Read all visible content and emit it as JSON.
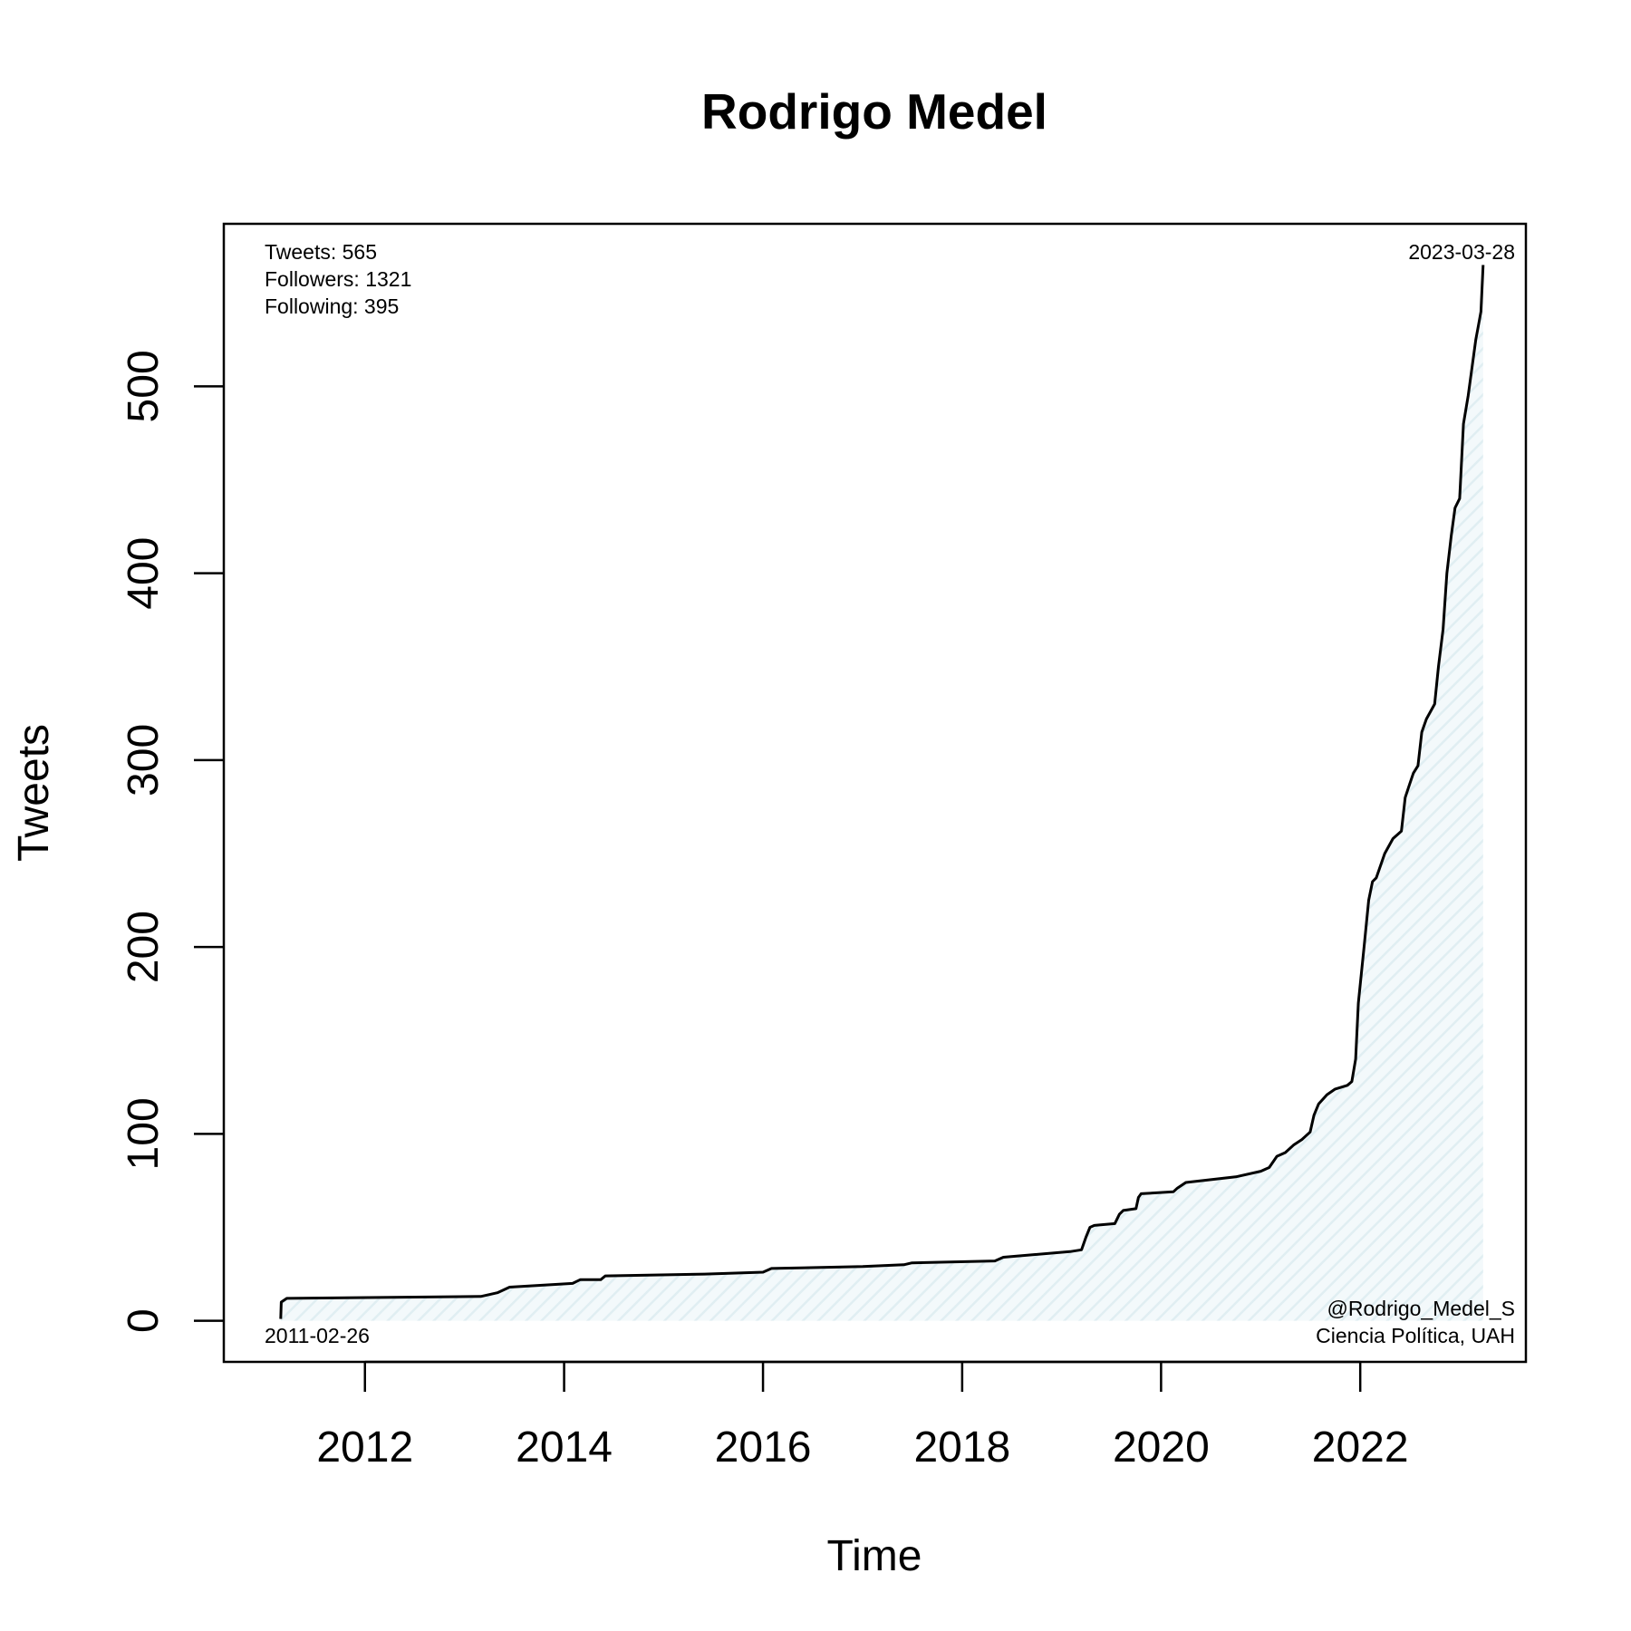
{
  "chart_data": {
    "type": "area",
    "title": "Rodrigo Medel",
    "xlabel": "Time",
    "ylabel": "Tweets",
    "xlim": [
      "2010-08-01",
      "2023-09-01"
    ],
    "ylim": [
      -22,
      587
    ],
    "x_ticks": [
      {
        "value": "2012-01-01",
        "label": "2012"
      },
      {
        "value": "2014-01-01",
        "label": "2014"
      },
      {
        "value": "2016-01-01",
        "label": "2016"
      },
      {
        "value": "2018-01-01",
        "label": "2018"
      },
      {
        "value": "2020-01-01",
        "label": "2020"
      },
      {
        "value": "2022-01-01",
        "label": "2022"
      }
    ],
    "y_ticks": [
      0,
      100,
      200,
      300,
      400,
      500
    ],
    "grid": false,
    "fill_color": "#e6f2f5",
    "line_color": "#000000",
    "stats": [
      "Tweets: 565",
      "Followers: 1321",
      "Following: 395"
    ],
    "start_label": "2011-02-26",
    "end_label": "2023-03-28",
    "credits": [
      "@Rodrigo_Medel_S",
      "Ciencia Política, UAH"
    ],
    "series": [
      {
        "points": [
          [
            "2011-02-26",
            1
          ],
          [
            "2011-02-28",
            10
          ],
          [
            "2011-03-20",
            12
          ],
          [
            "2013-03-01",
            13
          ],
          [
            "2013-05-01",
            15
          ],
          [
            "2013-06-15",
            18
          ],
          [
            "2014-02-01",
            20
          ],
          [
            "2014-03-01",
            22
          ],
          [
            "2014-05-15",
            22
          ],
          [
            "2014-06-01",
            24
          ],
          [
            "2015-06-01",
            25
          ],
          [
            "2016-01-01",
            26
          ],
          [
            "2016-02-01",
            28
          ],
          [
            "2017-01-01",
            29
          ],
          [
            "2017-06-01",
            30
          ],
          [
            "2017-07-01",
            31
          ],
          [
            "2018-05-01",
            32
          ],
          [
            "2018-06-01",
            34
          ],
          [
            "2019-02-01",
            37
          ],
          [
            "2019-03-15",
            38
          ],
          [
            "2019-04-01",
            45
          ],
          [
            "2019-04-15",
            50
          ],
          [
            "2019-05-01",
            51
          ],
          [
            "2019-07-15",
            52
          ],
          [
            "2019-08-01",
            57
          ],
          [
            "2019-08-15",
            59
          ],
          [
            "2019-10-01",
            60
          ],
          [
            "2019-10-10",
            66
          ],
          [
            "2019-10-20",
            68
          ],
          [
            "2020-02-15",
            69
          ],
          [
            "2020-03-01",
            71
          ],
          [
            "2020-04-01",
            74
          ],
          [
            "2020-10-01",
            77
          ],
          [
            "2021-01-01",
            80
          ],
          [
            "2021-02-01",
            82
          ],
          [
            "2021-03-01",
            88
          ],
          [
            "2021-04-01",
            90
          ],
          [
            "2021-05-01",
            94
          ],
          [
            "2021-06-01",
            97
          ],
          [
            "2021-07-01",
            101
          ],
          [
            "2021-07-15",
            110
          ],
          [
            "2021-08-01",
            116
          ],
          [
            "2021-09-01",
            121
          ],
          [
            "2021-10-01",
            124
          ],
          [
            "2021-11-15",
            126
          ],
          [
            "2021-12-01",
            128
          ],
          [
            "2021-12-15",
            140
          ],
          [
            "2021-12-25",
            170
          ],
          [
            "2022-01-15",
            200
          ],
          [
            "2022-02-01",
            225
          ],
          [
            "2022-02-15",
            235
          ],
          [
            "2022-03-01",
            237
          ],
          [
            "2022-04-01",
            250
          ],
          [
            "2022-05-01",
            258
          ],
          [
            "2022-06-01",
            262
          ],
          [
            "2022-06-15",
            280
          ],
          [
            "2022-07-01",
            287
          ],
          [
            "2022-07-15",
            293
          ],
          [
            "2022-08-01",
            297
          ],
          [
            "2022-08-15",
            315
          ],
          [
            "2022-09-01",
            322
          ],
          [
            "2022-10-01",
            330
          ],
          [
            "2022-10-15",
            350
          ],
          [
            "2022-11-01",
            370
          ],
          [
            "2022-11-15",
            400
          ],
          [
            "2022-12-01",
            420
          ],
          [
            "2022-12-15",
            435
          ],
          [
            "2023-01-01",
            440
          ],
          [
            "2023-01-15",
            480
          ],
          [
            "2023-02-01",
            495
          ],
          [
            "2023-02-15",
            510
          ],
          [
            "2023-03-01",
            525
          ],
          [
            "2023-03-10",
            532
          ],
          [
            "2023-03-20",
            540
          ],
          [
            "2023-03-28",
            565
          ]
        ]
      }
    ]
  }
}
